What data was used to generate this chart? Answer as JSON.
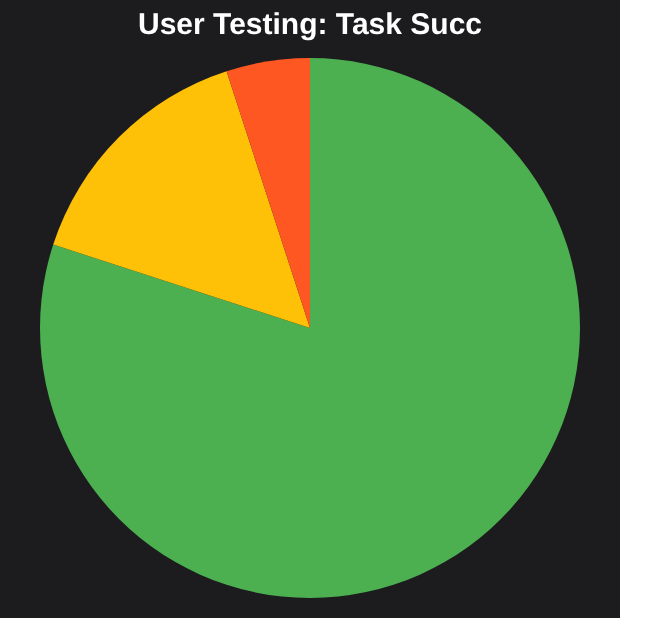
{
  "chart_data": {
    "type": "pie",
    "title": "User Testing: Task Succ",
    "categories": [
      null,
      null,
      null
    ],
    "values": [
      80,
      15,
      5
    ],
    "colors": [
      "#4caf50",
      "#ffc107",
      "#ff5722"
    ],
    "legend": false
  }
}
